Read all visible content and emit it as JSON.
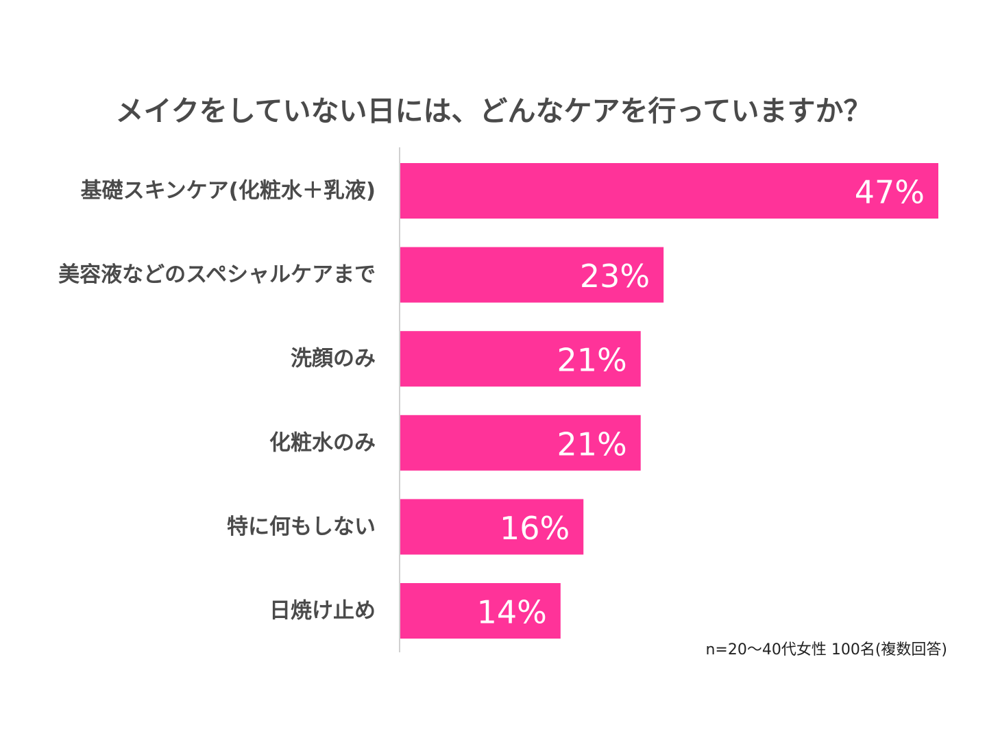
{
  "chart_data": {
    "type": "bar",
    "orientation": "horizontal",
    "title": "メイクをしていない日には、どんなケアを行っていますか？",
    "categories": [
      "基礎スキンケア(化粧水＋乳液)",
      "美容液などのスペシャルケアまで",
      "洗顔のみ",
      "化粧水のみ",
      "特に何もしない",
      "日焼け止め"
    ],
    "values": [
      47,
      23,
      21,
      21,
      16,
      14
    ],
    "value_labels": [
      "47%",
      "23%",
      "21%",
      "21%",
      "16%",
      "14%"
    ],
    "unit": "%",
    "xlim": [
      0,
      47
    ],
    "grid": false,
    "legend": "none",
    "bar_color": "#ff3399",
    "note": "n=20～40代女性 100名(複数回答)"
  }
}
